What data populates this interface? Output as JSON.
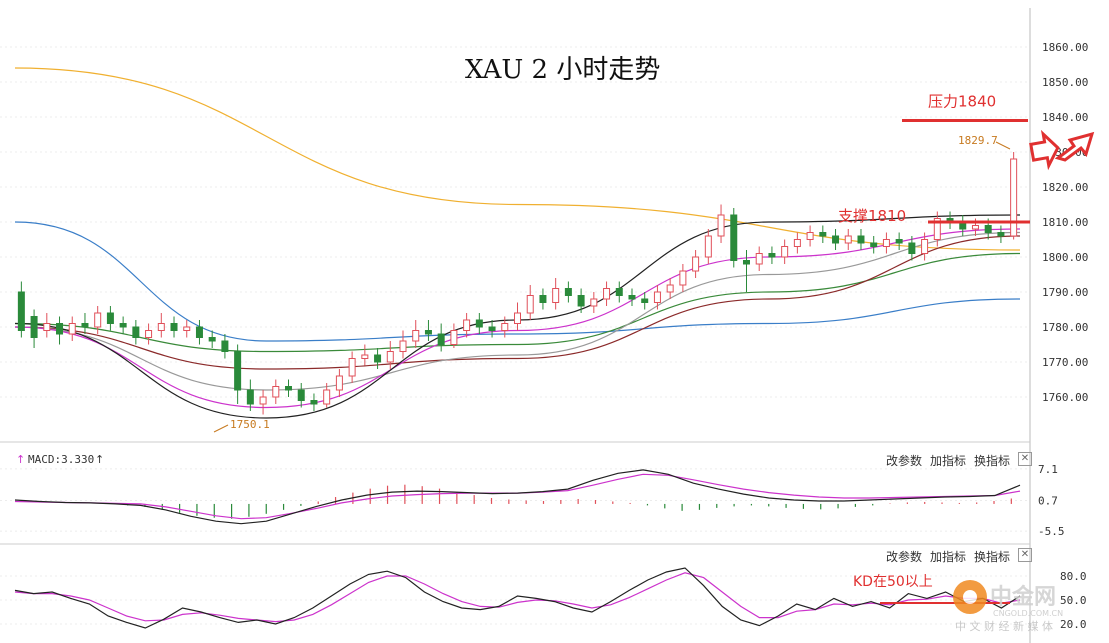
{
  "title": "XAU 2 小时走势",
  "controls": {
    "params": "改参数",
    "add": "加指标",
    "swap": "换指标",
    "close": "✕"
  },
  "macd_label": "MACD:3.330",
  "colors": {
    "up": "#e0505a",
    "down": "#2a8a3a",
    "ma_black": "#222222",
    "ma_magenta": "#cc33cc",
    "ma_gray": "#999999",
    "ma_brown": "#8b2a2a",
    "ma_green": "#3a8a3a",
    "ma_blue": "#3a7ec8",
    "ma_orange": "#f0b030",
    "annot_red": "#e03030"
  },
  "chart_data": [
    {
      "type": "candlestick",
      "title": "XAU 2 小时走势",
      "ylim": [
        1750,
        1862
      ],
      "y_ticks": [
        "1860.00",
        "1850.00",
        "1840.00",
        "1830.00",
        "1820.00",
        "1810.00",
        "1800.00",
        "1790.00",
        "1780.00",
        "1770.00",
        "1760.00"
      ],
      "price_labels": {
        "low": "1750.1",
        "last": "1829.7"
      },
      "annotations": {
        "resistance": {
          "label": "压力1840",
          "value": 1839
        },
        "support": {
          "label": "支撑1810",
          "value": 1810
        }
      },
      "candles": [
        [
          1790,
          1779,
          1793,
          1777
        ],
        [
          1783,
          1777,
          1785,
          1774
        ],
        [
          1779,
          1781,
          1784,
          1777
        ],
        [
          1781,
          1778,
          1783,
          1775
        ],
        [
          1778,
          1781,
          1783,
          1776
        ],
        [
          1781,
          1780,
          1784,
          1778
        ],
        [
          1780,
          1784,
          1786,
          1778
        ],
        [
          1784,
          1781,
          1786,
          1779
        ],
        [
          1781,
          1780,
          1783,
          1778
        ],
        [
          1780,
          1777,
          1782,
          1775
        ],
        [
          1777,
          1779,
          1781,
          1775
        ],
        [
          1779,
          1781,
          1784,
          1777
        ],
        [
          1781,
          1779,
          1783,
          1777
        ],
        [
          1779,
          1780,
          1782,
          1777
        ],
        [
          1780,
          1777,
          1782,
          1775
        ],
        [
          1777,
          1776,
          1779,
          1774
        ],
        [
          1776,
          1773,
          1778,
          1771
        ],
        [
          1773,
          1762,
          1775,
          1758
        ],
        [
          1762,
          1758,
          1765,
          1756
        ],
        [
          1758,
          1760,
          1762,
          1755
        ],
        [
          1760,
          1763,
          1765,
          1758
        ],
        [
          1763,
          1762,
          1765,
          1760
        ],
        [
          1762,
          1759,
          1764,
          1757
        ],
        [
          1759,
          1758,
          1761,
          1756
        ],
        [
          1758,
          1762,
          1764,
          1757
        ],
        [
          1762,
          1766,
          1768,
          1760
        ],
        [
          1766,
          1771,
          1773,
          1764
        ],
        [
          1771,
          1772,
          1775,
          1769
        ],
        [
          1772,
          1770,
          1774,
          1768
        ],
        [
          1770,
          1773,
          1776,
          1768
        ],
        [
          1773,
          1776,
          1779,
          1771
        ],
        [
          1776,
          1779,
          1782,
          1774
        ],
        [
          1779,
          1778,
          1782,
          1776
        ],
        [
          1778,
          1775,
          1781,
          1773
        ],
        [
          1775,
          1779,
          1781,
          1774
        ],
        [
          1779,
          1782,
          1784,
          1777
        ],
        [
          1782,
          1780,
          1784,
          1778
        ],
        [
          1780,
          1779,
          1782,
          1777
        ],
        [
          1779,
          1781,
          1783,
          1777
        ],
        [
          1781,
          1784,
          1787,
          1779
        ],
        [
          1784,
          1789,
          1792,
          1782
        ],
        [
          1789,
          1787,
          1791,
          1785
        ],
        [
          1787,
          1791,
          1794,
          1785
        ],
        [
          1791,
          1789,
          1793,
          1787
        ],
        [
          1789,
          1786,
          1791,
          1784
        ],
        [
          1786,
          1788,
          1790,
          1784
        ],
        [
          1788,
          1791,
          1793,
          1786
        ],
        [
          1791,
          1789,
          1793,
          1787
        ],
        [
          1789,
          1788,
          1791,
          1786
        ],
        [
          1788,
          1787,
          1790,
          1785
        ],
        [
          1787,
          1790,
          1792,
          1785
        ],
        [
          1790,
          1792,
          1794,
          1788
        ],
        [
          1792,
          1796,
          1798,
          1790
        ],
        [
          1796,
          1800,
          1802,
          1794
        ],
        [
          1800,
          1806,
          1808,
          1798
        ],
        [
          1806,
          1812,
          1815,
          1804
        ],
        [
          1812,
          1799,
          1814,
          1797
        ],
        [
          1799,
          1798,
          1802,
          1790
        ],
        [
          1798,
          1801,
          1803,
          1796
        ],
        [
          1801,
          1800,
          1803,
          1798
        ],
        [
          1800,
          1803,
          1805,
          1798
        ],
        [
          1803,
          1805,
          1807,
          1801
        ],
        [
          1805,
          1807,
          1809,
          1803
        ],
        [
          1807,
          1806,
          1809,
          1804
        ],
        [
          1806,
          1804,
          1808,
          1802
        ],
        [
          1804,
          1806,
          1808,
          1802
        ],
        [
          1806,
          1804,
          1808,
          1802
        ],
        [
          1804,
          1803,
          1806,
          1801
        ],
        [
          1803,
          1805,
          1807,
          1801
        ],
        [
          1805,
          1804,
          1807,
          1802
        ],
        [
          1804,
          1801,
          1806,
          1799
        ],
        [
          1801,
          1805,
          1807,
          1799
        ],
        [
          1805,
          1811,
          1813,
          1803
        ],
        [
          1811,
          1810,
          1813,
          1808
        ],
        [
          1810,
          1808,
          1812,
          1806
        ],
        [
          1808,
          1809,
          1811,
          1806
        ],
        [
          1809,
          1807,
          1811,
          1805
        ],
        [
          1807,
          1806,
          1809,
          1804
        ],
        [
          1806,
          1828,
          1830,
          1805
        ]
      ],
      "ma_series": [
        {
          "color_key": "ma_orange",
          "values": [
            1854,
            1815,
            1802
          ]
        },
        {
          "color_key": "ma_blue",
          "values": [
            1810,
            1776,
            1778,
            1781,
            1788
          ]
        },
        {
          "color_key": "ma_green",
          "values": [
            1781,
            1773,
            1775,
            1790,
            1801
          ]
        },
        {
          "color_key": "ma_brown",
          "values": [
            1780,
            1768,
            1771,
            1788,
            1806
          ]
        },
        {
          "color_key": "ma_gray",
          "values": [
            1780,
            1762,
            1772,
            1795,
            1807
          ]
        },
        {
          "color_key": "ma_magenta",
          "values": [
            1780,
            1757,
            1779,
            1800,
            1808
          ]
        },
        {
          "color_key": "ma_black",
          "values": [
            1781,
            1754,
            1782,
            1810,
            1812
          ]
        }
      ]
    },
    {
      "type": "bar",
      "title": "MACD:3.330",
      "ylim": [
        -6.5,
        8.5
      ],
      "y_ticks": [
        "7.1",
        "0.7",
        "-5.5"
      ],
      "histogram": [
        0,
        0,
        0,
        0,
        0,
        0,
        -0.3,
        -0.6,
        -1.2,
        -1.8,
        -2.4,
        -2.8,
        -3.0,
        -2.6,
        -2.0,
        -1.2,
        -0.4,
        0.5,
        1.4,
        2.3,
        3.1,
        3.7,
        3.9,
        3.6,
        3.1,
        2.4,
        1.8,
        1.2,
        0.9,
        0.7,
        0.6,
        0.8,
        1.0,
        0.8,
        0.5,
        0.2,
        -0.3,
        -0.9,
        -1.4,
        -1.2,
        -0.8,
        -0.5,
        -0.3,
        -0.5,
        -0.8,
        -1.0,
        -1.1,
        -0.9,
        -0.6,
        -0.3,
        0.1,
        0.3,
        0.4,
        0.3,
        0.2,
        0.3,
        0.6,
        1.1
      ],
      "dif": [
        0.8,
        0.5,
        0.3,
        0.2,
        0.0,
        -0.3,
        -1.2,
        -2.5,
        -3.5,
        -4.0,
        -3.5,
        -2.0,
        -0.5,
        0.8,
        1.8,
        2.4,
        2.6,
        2.5,
        2.3,
        2.1,
        2.2,
        2.5,
        3.0,
        4.8,
        6.2,
        6.9,
        6.0,
        4.2,
        3.0,
        2.0,
        1.2,
        0.8,
        0.6,
        0.6,
        0.8,
        1.0,
        1.2,
        1.4,
        1.5,
        1.7,
        3.8
      ],
      "dea": [
        0.5,
        0.4,
        0.3,
        0.2,
        0.1,
        0.0,
        -0.6,
        -1.5,
        -2.4,
        -3.0,
        -2.8,
        -1.9,
        -0.9,
        0.2,
        1.0,
        1.6,
        1.9,
        2.1,
        2.2,
        2.2,
        2.2,
        2.4,
        2.7,
        3.8,
        5.0,
        6.0,
        5.8,
        4.9,
        3.9,
        3.0,
        2.3,
        1.8,
        1.4,
        1.2,
        1.2,
        1.3,
        1.4,
        1.5,
        1.6,
        1.7,
        2.6
      ]
    },
    {
      "type": "line",
      "ylim": [
        0,
        100
      ],
      "y_ticks": [
        "80.0",
        "50.0",
        "20.0"
      ],
      "annotation": {
        "label": "KD在50以上",
        "value": 50
      },
      "k": [
        62,
        58,
        60,
        52,
        45,
        30,
        22,
        15,
        26,
        40,
        35,
        28,
        22,
        25,
        20,
        28,
        40,
        55,
        70,
        82,
        86,
        78,
        60,
        48,
        40,
        38,
        42,
        55,
        52,
        48,
        40,
        35,
        48,
        62,
        75,
        85,
        90,
        68,
        42,
        25,
        18,
        30,
        45,
        38,
        52,
        42,
        48,
        40,
        58,
        52,
        60,
        48,
        52,
        40,
        55
      ],
      "d": [
        60,
        58,
        58,
        55,
        50,
        40,
        30,
        24,
        25,
        32,
        34,
        31,
        27,
        25,
        23,
        25,
        32,
        44,
        58,
        72,
        80,
        80,
        70,
        58,
        48,
        42,
        41,
        47,
        50,
        49,
        45,
        40,
        44,
        53,
        64,
        75,
        84,
        78,
        60,
        42,
        28,
        28,
        36,
        38,
        45,
        44,
        46,
        44,
        50,
        51,
        55,
        52,
        52,
        46,
        50
      ]
    }
  ]
}
